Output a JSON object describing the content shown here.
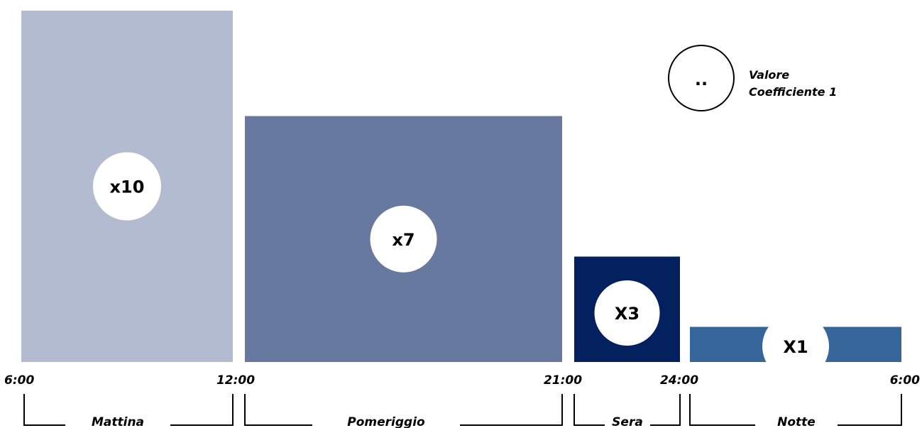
{
  "chart_data": {
    "type": "bar",
    "bars": [
      {
        "label": "x10",
        "start": "6:00",
        "end": "12:00",
        "value": 10,
        "color": "#b2bbcf"
      },
      {
        "label": "x7",
        "start": "12:00",
        "end": "21:00",
        "value": 7,
        "color": "#67799e"
      },
      {
        "label": "X3",
        "start": "21:00",
        "end": "24:00",
        "value": 3,
        "color": "#02215e"
      },
      {
        "label": "X1",
        "start": "24:00",
        "end": "6:00",
        "value": 1,
        "color": "#356599"
      }
    ],
    "ticks": [
      "6:00",
      "12:00",
      "21:00",
      "24:00",
      "6:00"
    ],
    "periods": [
      {
        "label": "Mattina",
        "from": "6:00",
        "to": "12:00"
      },
      {
        "label": "Pomeriggio",
        "from": "12:00",
        "to": "21:00"
      },
      {
        "label": "Sera",
        "from": "21:00",
        "to": "24:00"
      },
      {
        "label": "Notte",
        "from": "24:00",
        "to": "6:00"
      }
    ],
    "legend": {
      "symbol": "..",
      "line1": "Valore",
      "line2": "Coefficiente 1",
      "placement": "top-right"
    }
  }
}
